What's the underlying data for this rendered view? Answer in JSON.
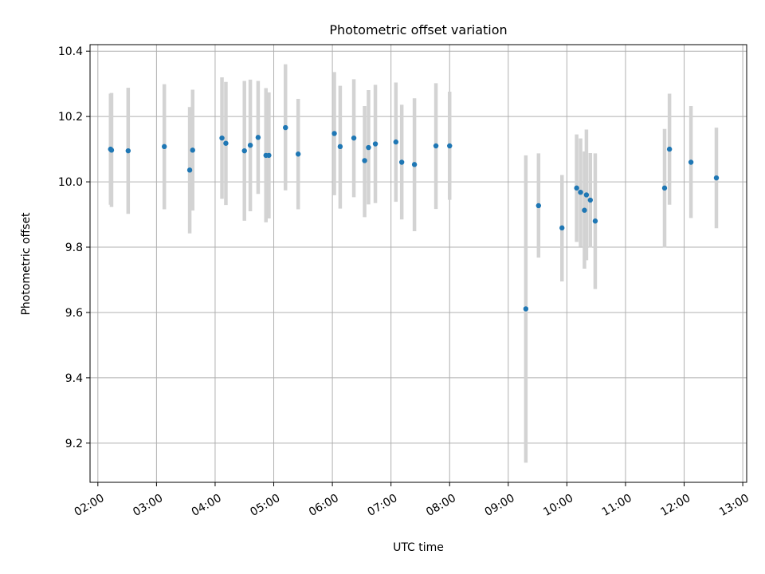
{
  "chart_data": {
    "type": "scatter",
    "title": "Photometric offset variation",
    "xlabel": "UTC time",
    "ylabel": "Photometric offset",
    "x_ticks": [
      "02:00",
      "03:00",
      "04:00",
      "05:00",
      "06:00",
      "07:00",
      "08:00",
      "09:00",
      "10:00",
      "11:00",
      "12:00",
      "13:00"
    ],
    "y_ticks": [
      "9.2",
      "9.4",
      "9.6",
      "9.8",
      "10.0",
      "10.2",
      "10.4"
    ],
    "xlim": [
      "01:52",
      "13:04"
    ],
    "ylim": [
      9.08,
      10.42
    ],
    "grid": true,
    "marker_color": "#1f77b4",
    "errorbar_color": "#d3d3d3",
    "points": [
      {
        "x": "02:13",
        "y": 10.1,
        "low": 9.93,
        "high": 10.27
      },
      {
        "x": "02:14",
        "y": 10.097,
        "low": 9.923,
        "high": 10.272
      },
      {
        "x": "02:31",
        "y": 10.095,
        "low": 9.902,
        "high": 10.288
      },
      {
        "x": "03:08",
        "y": 10.108,
        "low": 9.916,
        "high": 10.299
      },
      {
        "x": "03:34",
        "y": 10.036,
        "low": 9.842,
        "high": 10.229
      },
      {
        "x": "03:37",
        "y": 10.097,
        "low": 9.912,
        "high": 10.282
      },
      {
        "x": "04:07",
        "y": 10.134,
        "low": 9.948,
        "high": 10.32
      },
      {
        "x": "04:11",
        "y": 10.118,
        "low": 9.929,
        "high": 10.306
      },
      {
        "x": "04:30",
        "y": 10.095,
        "low": 9.881,
        "high": 10.309
      },
      {
        "x": "04:36",
        "y": 10.112,
        "low": 9.91,
        "high": 10.313
      },
      {
        "x": "04:44",
        "y": 10.136,
        "low": 9.963,
        "high": 10.309
      },
      {
        "x": "04:52",
        "y": 10.081,
        "low": 9.876,
        "high": 10.287
      },
      {
        "x": "04:55",
        "y": 10.081,
        "low": 9.888,
        "high": 10.274
      },
      {
        "x": "05:12",
        "y": 10.166,
        "low": 9.974,
        "high": 10.36
      },
      {
        "x": "05:25",
        "y": 10.085,
        "low": 9.916,
        "high": 10.254
      },
      {
        "x": "06:02",
        "y": 10.148,
        "low": 9.959,
        "high": 10.336
      },
      {
        "x": "06:08",
        "y": 10.108,
        "low": 9.918,
        "high": 10.294
      },
      {
        "x": "06:22",
        "y": 10.134,
        "low": 9.953,
        "high": 10.314
      },
      {
        "x": "06:33",
        "y": 10.065,
        "low": 9.892,
        "high": 10.232
      },
      {
        "x": "06:37",
        "y": 10.105,
        "low": 9.931,
        "high": 10.281
      },
      {
        "x": "06:44",
        "y": 10.116,
        "low": 9.935,
        "high": 10.297
      },
      {
        "x": "07:05",
        "y": 10.122,
        "low": 9.939,
        "high": 10.304
      },
      {
        "x": "07:11",
        "y": 10.06,
        "low": 9.885,
        "high": 10.236
      },
      {
        "x": "07:24",
        "y": 10.053,
        "low": 9.849,
        "high": 10.256
      },
      {
        "x": "07:46",
        "y": 10.11,
        "low": 9.917,
        "high": 10.302
      },
      {
        "x": "08:00",
        "y": 10.11,
        "low": 9.945,
        "high": 10.276
      },
      {
        "x": "09:18",
        "y": 9.611,
        "low": 9.14,
        "high": 10.081
      },
      {
        "x": "09:31",
        "y": 9.927,
        "low": 9.768,
        "high": 10.087
      },
      {
        "x": "09:55",
        "y": 9.859,
        "low": 9.695,
        "high": 10.021
      },
      {
        "x": "10:10",
        "y": 9.981,
        "low": 9.816,
        "high": 10.145
      },
      {
        "x": "10:14",
        "y": 9.968,
        "low": 9.802,
        "high": 10.133
      },
      {
        "x": "10:18",
        "y": 9.913,
        "low": 9.734,
        "high": 10.093
      },
      {
        "x": "10:20",
        "y": 9.96,
        "low": 9.76,
        "high": 10.16
      },
      {
        "x": "10:24",
        "y": 9.944,
        "low": 9.799,
        "high": 10.088
      },
      {
        "x": "10:29",
        "y": 9.88,
        "low": 9.672,
        "high": 10.087
      },
      {
        "x": "11:40",
        "y": 9.981,
        "low": 9.799,
        "high": 10.162
      },
      {
        "x": "11:45",
        "y": 10.1,
        "low": 9.93,
        "high": 10.27
      },
      {
        "x": "12:07",
        "y": 10.06,
        "low": 9.889,
        "high": 10.232
      },
      {
        "x": "12:33",
        "y": 10.012,
        "low": 9.858,
        "high": 10.166
      }
    ]
  }
}
